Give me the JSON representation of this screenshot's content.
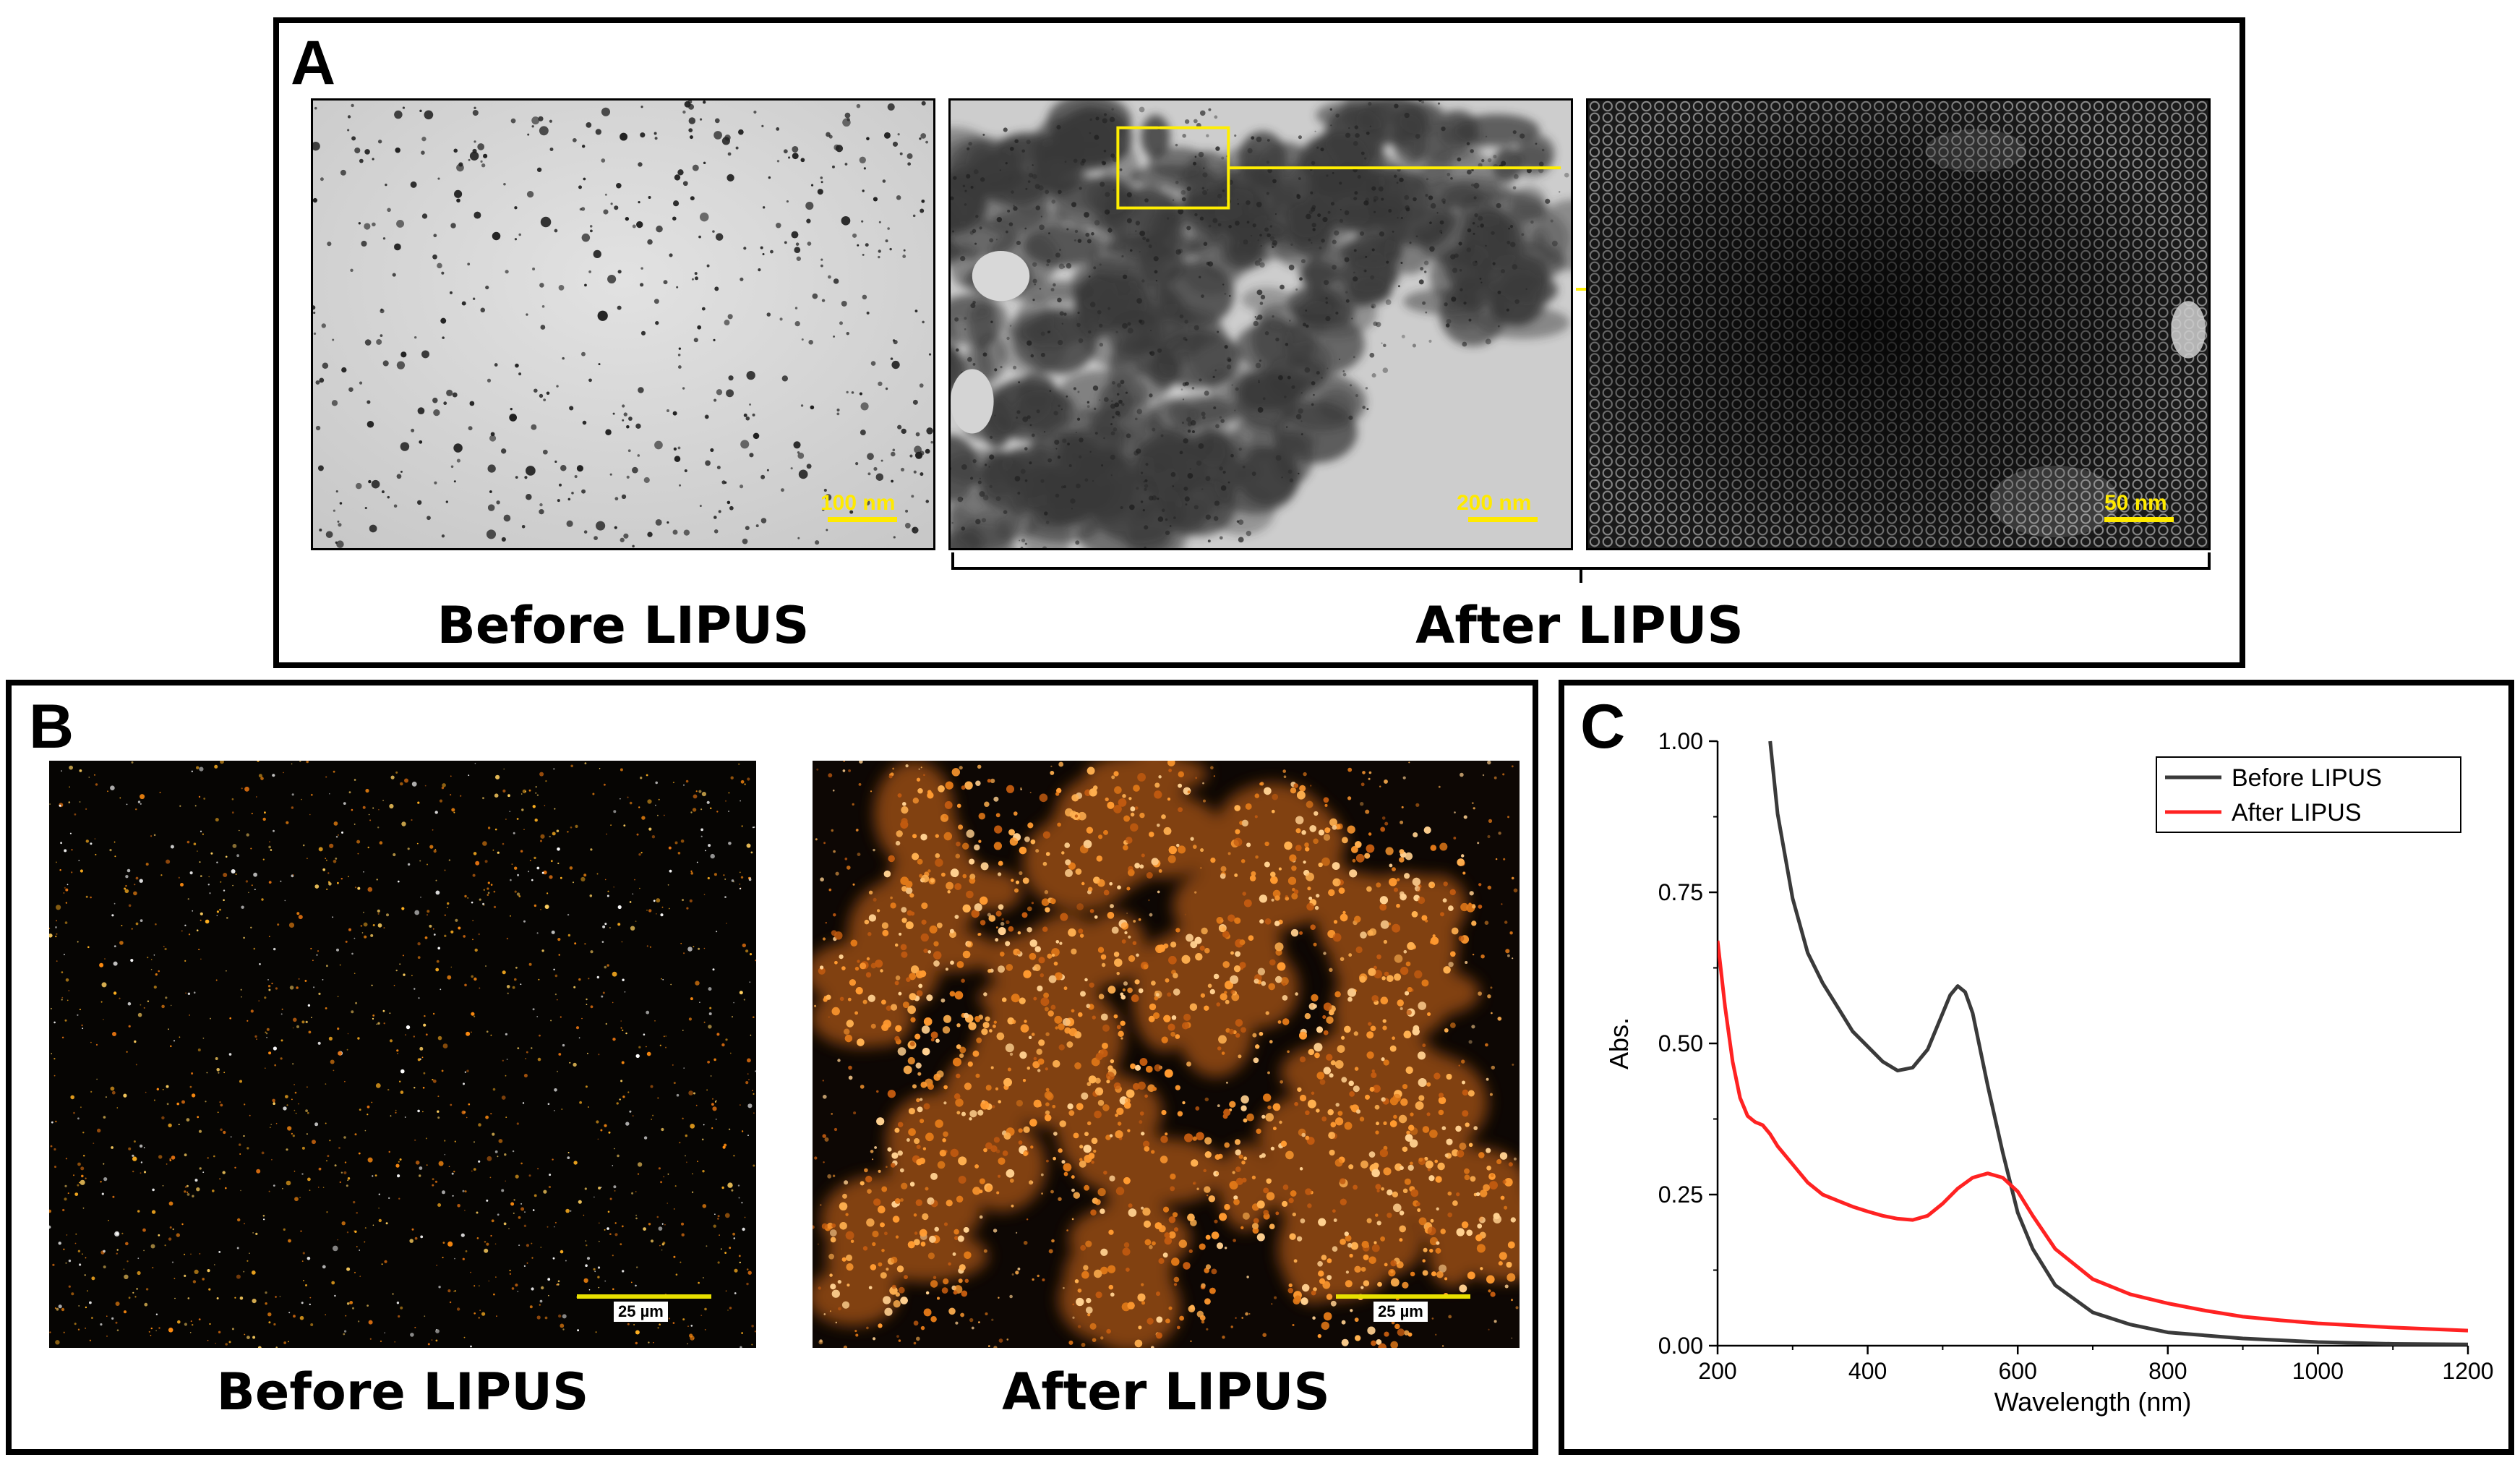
{
  "panel_a": {
    "label": "A",
    "caption_before": "Before LIPUS",
    "caption_after": "After LIPUS",
    "scalebars": [
      "100 nm",
      "200 nm",
      "50 nm"
    ]
  },
  "panel_b": {
    "label": "B",
    "caption_before": "Before LIPUS",
    "caption_after": "After LIPUS",
    "scalebars": [
      "25 µm",
      "25 µm"
    ]
  },
  "panel_c": {
    "label": "C"
  },
  "chart_data": {
    "type": "line",
    "xlabel": "Wavelength (nm)",
    "ylabel": "Abs.",
    "xlim": [
      200,
      1200
    ],
    "ylim": [
      0,
      1.0
    ],
    "xticks": [
      200,
      400,
      600,
      800,
      1000,
      1200
    ],
    "yticks": [
      0.0,
      0.25,
      0.5,
      0.75,
      1.0
    ],
    "xtick_labels": [
      "200",
      "400",
      "600",
      "800",
      "1000",
      "1200"
    ],
    "ytick_labels": [
      "0.00",
      "0.25",
      "0.50",
      "0.75",
      "1.00"
    ],
    "grid": false,
    "legend_position": "top-right",
    "series": [
      {
        "name": "Before LIPUS",
        "color": "#3a3a3a",
        "x": [
          270,
          280,
          300,
          320,
          340,
          360,
          380,
          400,
          420,
          440,
          460,
          480,
          500,
          510,
          520,
          530,
          540,
          550,
          560,
          580,
          600,
          620,
          650,
          700,
          750,
          800,
          900,
          1000,
          1100,
          1200
        ],
        "y": [
          1.0,
          0.88,
          0.74,
          0.65,
          0.6,
          0.56,
          0.52,
          0.495,
          0.47,
          0.455,
          0.46,
          0.49,
          0.55,
          0.58,
          0.595,
          0.585,
          0.55,
          0.49,
          0.43,
          0.32,
          0.22,
          0.16,
          0.1,
          0.055,
          0.035,
          0.022,
          0.012,
          0.006,
          0.003,
          0.002
        ]
      },
      {
        "name": "After LIPUS",
        "color": "#ff2222",
        "x": [
          200,
          210,
          220,
          230,
          240,
          250,
          260,
          270,
          280,
          300,
          320,
          340,
          360,
          380,
          400,
          420,
          440,
          460,
          480,
          500,
          520,
          540,
          560,
          580,
          600,
          620,
          650,
          700,
          750,
          800,
          850,
          900,
          950,
          1000,
          1100,
          1200
        ],
        "y": [
          0.67,
          0.56,
          0.47,
          0.41,
          0.38,
          0.37,
          0.365,
          0.35,
          0.33,
          0.3,
          0.27,
          0.25,
          0.24,
          0.23,
          0.222,
          0.215,
          0.21,
          0.208,
          0.215,
          0.235,
          0.26,
          0.278,
          0.285,
          0.278,
          0.255,
          0.215,
          0.16,
          0.11,
          0.085,
          0.07,
          0.058,
          0.048,
          0.042,
          0.037,
          0.03,
          0.025
        ]
      }
    ]
  }
}
